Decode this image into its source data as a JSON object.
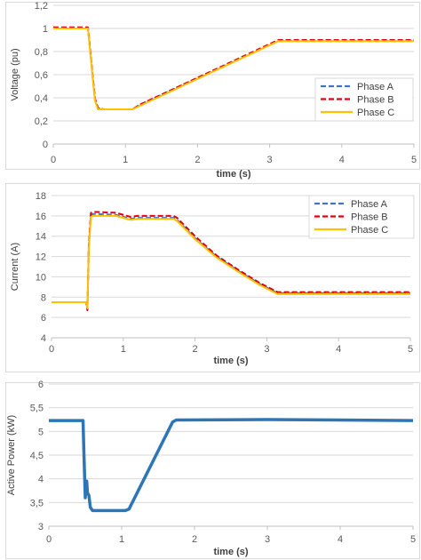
{
  "chart_data": [
    {
      "type": "line",
      "xlabel": "time (s)",
      "ylabel": "Voltage (pu)",
      "xlim": [
        0,
        5
      ],
      "ylim": [
        0,
        1.2
      ],
      "x_ticks": [
        "0",
        "1",
        "2",
        "3",
        "4",
        "5"
      ],
      "y_ticks": [
        "0",
        "0,2",
        "0,4",
        "0,6",
        "0,8",
        "1",
        "1,2"
      ],
      "grid": "horizontal",
      "legend_position": "right",
      "series": [
        {
          "name": "Phase A",
          "color": "#4472C4",
          "style": "dashed",
          "x": [
            0,
            0.48,
            0.5,
            0.55,
            0.58,
            0.62,
            0.7,
            1.1,
            1.2,
            3.12,
            5
          ],
          "y": [
            1.0,
            1.0,
            0.88,
            0.55,
            0.38,
            0.31,
            0.3,
            0.3,
            0.34,
            0.89,
            0.89
          ]
        },
        {
          "name": "Phase B",
          "color": "#E0000F",
          "style": "dashed",
          "x": [
            0,
            0.48,
            0.5,
            0.55,
            0.58,
            0.62,
            0.7,
            1.1,
            1.2,
            3.12,
            5
          ],
          "y": [
            1.01,
            1.01,
            0.89,
            0.56,
            0.39,
            0.31,
            0.3,
            0.3,
            0.34,
            0.9,
            0.9
          ]
        },
        {
          "name": "Phase C",
          "color": "#FFC000",
          "style": "solid",
          "x": [
            0,
            0.48,
            0.5,
            0.55,
            0.58,
            0.62,
            0.7,
            1.1,
            1.2,
            3.12,
            5
          ],
          "y": [
            1.0,
            1.0,
            0.87,
            0.54,
            0.37,
            0.3,
            0.3,
            0.3,
            0.33,
            0.89,
            0.89
          ]
        }
      ]
    },
    {
      "type": "line",
      "xlabel": "time (s)",
      "ylabel": "Current (A)",
      "xlim": [
        0,
        5
      ],
      "ylim": [
        4,
        18
      ],
      "x_ticks": [
        "0",
        "1",
        "2",
        "3",
        "4",
        "5"
      ],
      "y_ticks": [
        "4",
        "6",
        "8",
        "10",
        "12",
        "14",
        "16",
        "18"
      ],
      "grid": "horizontal",
      "legend_position": "top-right",
      "series": [
        {
          "name": "Phase A",
          "color": "#4472C4",
          "style": "dashed",
          "x": [
            0,
            0.48,
            0.5,
            0.52,
            0.55,
            0.58,
            0.9,
            1.1,
            1.2,
            1.7,
            1.75,
            2.0,
            2.3,
            2.6,
            2.9,
            3.15,
            5
          ],
          "y": [
            7.5,
            7.5,
            6.8,
            13.0,
            16.1,
            16.2,
            16.1,
            15.7,
            15.8,
            15.8,
            15.6,
            13.8,
            12.0,
            10.6,
            9.3,
            8.4,
            8.4
          ]
        },
        {
          "name": "Phase B",
          "color": "#E0000F",
          "style": "dashed",
          "x": [
            0,
            0.48,
            0.5,
            0.52,
            0.55,
            0.58,
            0.9,
            1.1,
            1.2,
            1.7,
            1.75,
            2.0,
            2.3,
            2.6,
            2.9,
            3.15,
            5
          ],
          "y": [
            7.5,
            7.5,
            6.7,
            13.2,
            16.3,
            16.4,
            16.3,
            15.9,
            16.0,
            16.0,
            15.8,
            14.0,
            12.1,
            10.7,
            9.4,
            8.5,
            8.5
          ]
        },
        {
          "name": "Phase C",
          "color": "#FFC000",
          "style": "solid",
          "x": [
            0,
            0.48,
            0.5,
            0.52,
            0.55,
            0.58,
            0.9,
            1.1,
            1.2,
            1.7,
            1.75,
            2.0,
            2.3,
            2.6,
            2.9,
            3.15,
            5
          ],
          "y": [
            7.5,
            7.5,
            6.9,
            12.8,
            15.9,
            16.0,
            16.0,
            15.6,
            15.7,
            15.7,
            15.5,
            13.7,
            11.9,
            10.5,
            9.2,
            8.3,
            8.3
          ]
        }
      ]
    },
    {
      "type": "line",
      "xlabel": "time (s)",
      "ylabel": "Active Power (kW)",
      "xlim": [
        0,
        5
      ],
      "ylim": [
        3,
        6
      ],
      "x_ticks": [
        "0",
        "1",
        "2",
        "3",
        "4",
        "5"
      ],
      "y_ticks": [
        "3",
        "3,5",
        "4",
        "4,5",
        "5",
        "5,5",
        "6"
      ],
      "grid": "horizontal",
      "series": [
        {
          "color": "#2E75B6",
          "style": "solid",
          "x": [
            0,
            0.47,
            0.48,
            0.5,
            0.52,
            0.53,
            0.55,
            0.57,
            0.6,
            0.8,
            1.05,
            1.1,
            1.7,
            1.75,
            3.0,
            5
          ],
          "y": [
            5.23,
            5.23,
            4.6,
            3.6,
            3.95,
            3.7,
            3.65,
            3.4,
            3.33,
            3.33,
            3.33,
            3.36,
            5.2,
            5.24,
            5.25,
            5.23
          ]
        }
      ]
    }
  ]
}
